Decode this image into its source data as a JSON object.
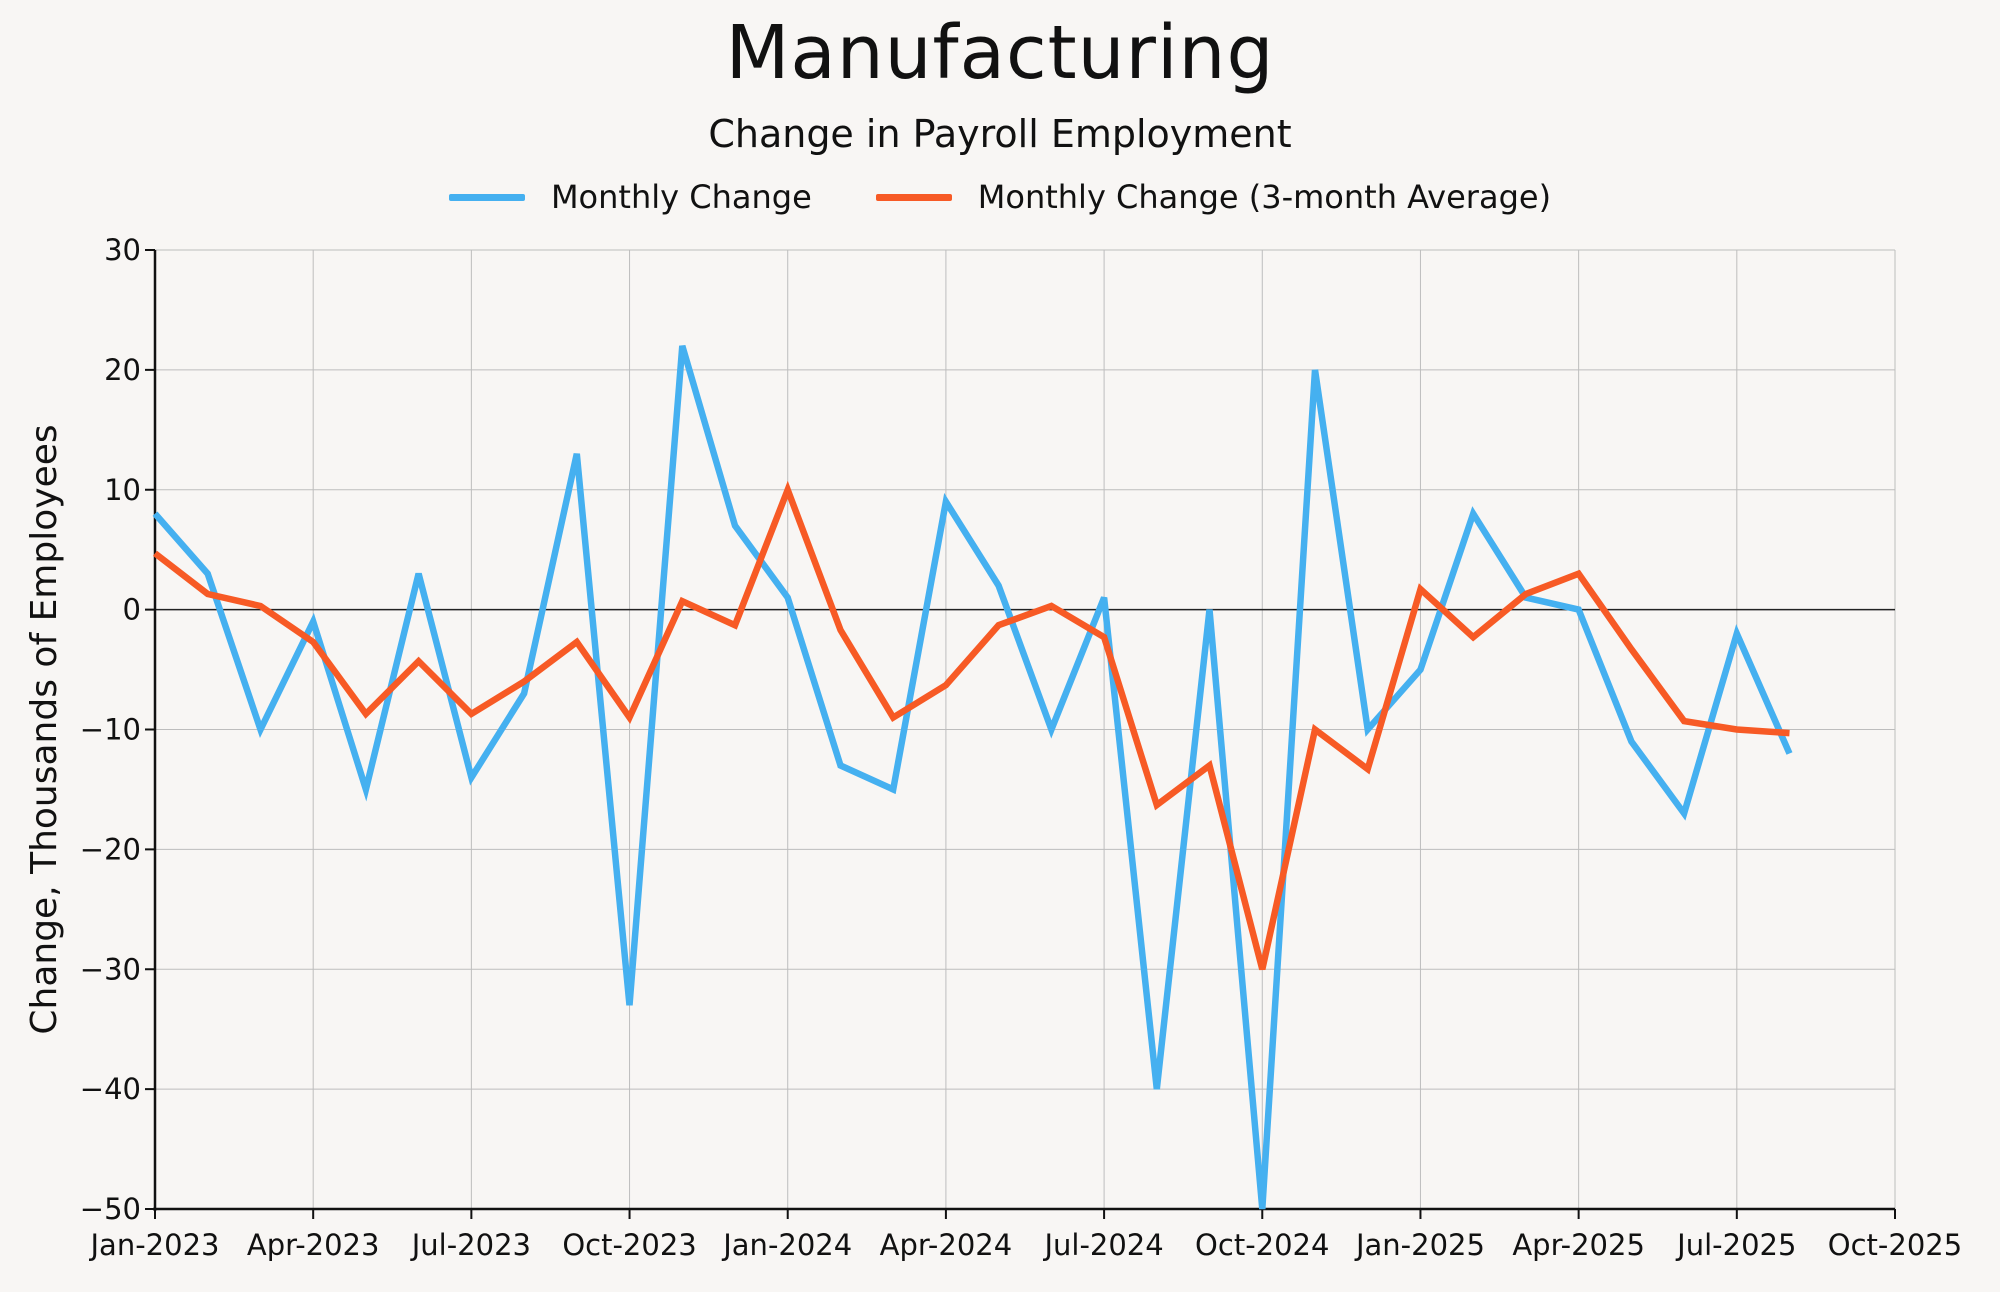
{
  "chart_data": {
    "type": "line",
    "title": "Manufacturing",
    "subtitle": "Change in Payroll Employment",
    "xlabel": "",
    "ylabel": "Change, Thousands of Employees",
    "ylim": [
      -50,
      30
    ],
    "yticks": [
      30,
      20,
      10,
      0,
      -10,
      -20,
      -30,
      -40,
      -50
    ],
    "ytick_labels": [
      "30",
      "20",
      "10",
      "0",
      "−10",
      "−20",
      "−30",
      "−40",
      "−50"
    ],
    "xticks": [
      "Jan-2023",
      "Apr-2023",
      "Jul-2023",
      "Oct-2023",
      "Jan-2024",
      "Apr-2024",
      "Jul-2024",
      "Oct-2024",
      "Jan-2025",
      "Apr-2025",
      "Jul-2025",
      "Oct-2025"
    ],
    "grid": true,
    "legend_position": "top-center",
    "x": [
      "Jan-2023",
      "Feb-2023",
      "Mar-2023",
      "Apr-2023",
      "May-2023",
      "Jun-2023",
      "Jul-2023",
      "Aug-2023",
      "Sep-2023",
      "Oct-2023",
      "Nov-2023",
      "Dec-2023",
      "Jan-2024",
      "Feb-2024",
      "Mar-2024",
      "Apr-2024",
      "May-2024",
      "Jun-2024",
      "Jul-2024",
      "Aug-2024",
      "Sep-2024",
      "Oct-2024",
      "Nov-2024",
      "Dec-2024",
      "Jan-2025",
      "Feb-2025",
      "Mar-2025",
      "Apr-2025",
      "May-2025",
      "Jun-2025",
      "Jul-2025",
      "Aug-2025"
    ],
    "series": [
      {
        "name": "Monthly Change",
        "color": "#45b0f0",
        "values": [
          8,
          3,
          -10,
          -1,
          -15,
          3,
          -14,
          -7,
          13,
          -33,
          22,
          7,
          1,
          -13,
          -15,
          9,
          2,
          -10,
          1,
          -40,
          0,
          -50,
          20,
          -10,
          -5,
          8,
          1,
          0,
          -11,
          -17,
          -2,
          -12
        ]
      },
      {
        "name": "Monthly Change (3-month Average)",
        "color": "#f75a25",
        "values": [
          4.7,
          1.3,
          0.3,
          -2.7,
          -8.7,
          -4.3,
          -8.7,
          -6.0,
          -2.7,
          -9.0,
          0.7,
          -1.3,
          10.0,
          -1.7,
          -9.0,
          -6.3,
          -1.3,
          0.3,
          -2.3,
          -16.3,
          -13.0,
          -30.0,
          -10.0,
          -13.3,
          1.7,
          -2.3,
          1.3,
          3.0,
          -3.3,
          -9.3,
          -10.0,
          -10.3
        ]
      }
    ]
  }
}
